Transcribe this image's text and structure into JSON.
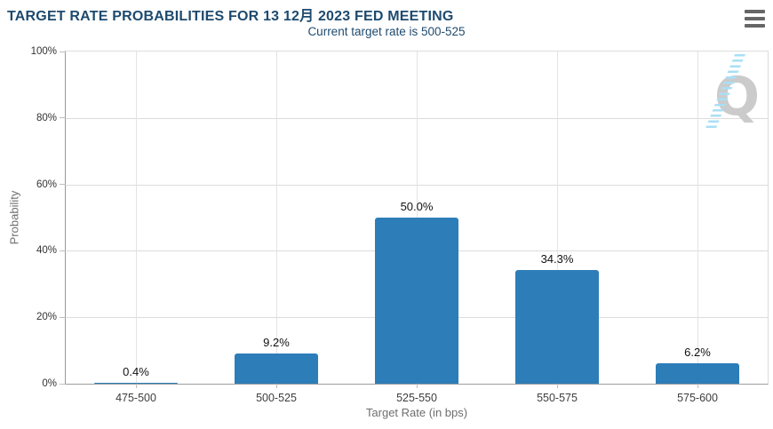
{
  "header": {
    "title": "TARGET RATE PROBABILITIES FOR 13 12月 2023 FED MEETING",
    "subtitle": "Current target rate is 500-525",
    "menu_icon": "hamburger-icon"
  },
  "chart_data": {
    "type": "bar",
    "title": "TARGET RATE PROBABILITIES FOR 13 12月 2023 FED MEETING",
    "subtitle": "Current target rate is 500-525",
    "categories": [
      "475-500",
      "500-525",
      "525-550",
      "550-575",
      "575-600"
    ],
    "values": [
      0.4,
      9.2,
      50.0,
      34.3,
      6.2
    ],
    "value_labels": [
      "0.4%",
      "9.2%",
      "50.0%",
      "34.3%",
      "6.2%"
    ],
    "xlabel": "Target Rate (in bps)",
    "ylabel": "Probability",
    "ylim": [
      0,
      100
    ],
    "yticks": [
      "0%",
      "20%",
      "40%",
      "60%",
      "80%",
      "100%"
    ],
    "grid": true,
    "legend": "none",
    "bar_color": "#2d7db8"
  },
  "watermark": {
    "letter": "Q",
    "stripe_color": "#a9dff6",
    "letter_color": "#cbcbcb"
  },
  "colors": {
    "title_text": "#1e4a6e",
    "bar": "#2d7db8",
    "gridline": "#dcdcdc",
    "axis_line": "#999999",
    "tick_text": "#333333",
    "axis_title_text": "#6e6e6e",
    "menu_icon": "#666666"
  }
}
